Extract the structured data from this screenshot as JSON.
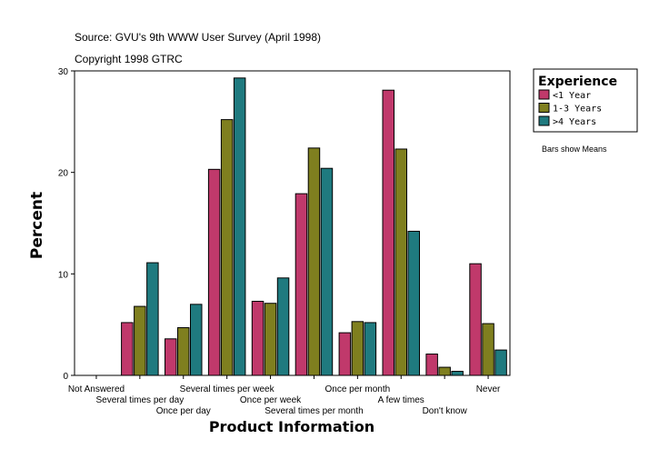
{
  "chart_data": {
    "type": "bar",
    "source_line": "Source: GVU's 9th WWW User Survey (April 1998)",
    "copyright_line": "Copyright 1998 GTRC",
    "xlabel": "Product Information",
    "ylabel": "Percent",
    "ylim": [
      0,
      30
    ],
    "yticks": [
      "0",
      "10",
      "20",
      "30"
    ],
    "categories": [
      "Not Answered",
      "Several times per day",
      "Once per day",
      "Several times per week",
      "Once per week",
      "Several times per month",
      "Once per month",
      "A few times",
      "Don't know",
      "Never"
    ],
    "series": [
      {
        "name": "<1 Year",
        "color": "#c0396b",
        "values": [
          0,
          5.2,
          3.6,
          20.3,
          7.3,
          17.9,
          4.2,
          28.1,
          2.1,
          11.0
        ]
      },
      {
        "name": "1-3 Years",
        "color": "#7f7f1f",
        "values": [
          0,
          6.8,
          4.7,
          25.2,
          7.1,
          22.4,
          5.3,
          22.3,
          0.8,
          5.1
        ]
      },
      {
        "name": ">4 Years",
        "color": "#1f7a7f",
        "values": [
          0,
          11.1,
          7.0,
          29.3,
          9.6,
          20.4,
          5.2,
          14.2,
          0.4,
          2.5
        ]
      }
    ],
    "legend_title": "Experience",
    "legend_position": "top-right",
    "note": "Bars show Means",
    "grid": false
  }
}
